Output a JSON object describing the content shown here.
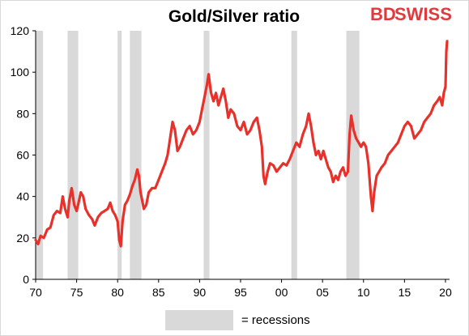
{
  "logo": {
    "brand_a": "BD",
    "brand_b": "SWISS",
    "color": "#e03a3e"
  },
  "chart_data": {
    "type": "line",
    "title": "Gold/Silver ratio",
    "xlabel": "",
    "ylabel": "",
    "xlim": [
      1970,
      2020.3
    ],
    "ylim": [
      0,
      120
    ],
    "x_tick_values": [
      1970,
      1975,
      1980,
      1985,
      1990,
      1995,
      2000,
      2005,
      2010,
      2015,
      2020
    ],
    "x_tick_labels": [
      "70",
      "75",
      "80",
      "85",
      "90",
      "95",
      "00",
      "05",
      "10",
      "15",
      "20"
    ],
    "y_ticks": [
      0,
      20,
      40,
      60,
      80,
      100,
      120
    ],
    "grid": false,
    "line_color": "#e8312a",
    "recession_color": "#d9d9d9",
    "legend": {
      "label": "= recessions",
      "position": "bottom"
    },
    "recessions": [
      [
        1970.0,
        1970.9
      ],
      [
        1973.9,
        1975.2
      ],
      [
        1980.0,
        1980.5
      ],
      [
        1981.5,
        1982.9
      ],
      [
        1990.5,
        1991.2
      ],
      [
        2001.2,
        2001.9
      ],
      [
        2007.9,
        2009.5
      ]
    ],
    "series": [
      {
        "values": [
          [
            1970.0,
            19
          ],
          [
            1970.3,
            17
          ],
          [
            1970.6,
            21
          ],
          [
            1971.0,
            20
          ],
          [
            1971.4,
            24
          ],
          [
            1971.8,
            25
          ],
          [
            1972.2,
            31
          ],
          [
            1972.6,
            33
          ],
          [
            1973.0,
            32
          ],
          [
            1973.3,
            40
          ],
          [
            1973.6,
            34
          ],
          [
            1973.9,
            30
          ],
          [
            1974.1,
            38
          ],
          [
            1974.4,
            44
          ],
          [
            1974.7,
            36
          ],
          [
            1975.0,
            33
          ],
          [
            1975.3,
            38
          ],
          [
            1975.5,
            42
          ],
          [
            1975.8,
            40
          ],
          [
            1976.1,
            34
          ],
          [
            1976.5,
            31
          ],
          [
            1976.9,
            29
          ],
          [
            1977.2,
            26
          ],
          [
            1977.6,
            30
          ],
          [
            1978.0,
            32
          ],
          [
            1978.4,
            33
          ],
          [
            1978.8,
            34
          ],
          [
            1979.1,
            37
          ],
          [
            1979.4,
            33
          ],
          [
            1979.7,
            31
          ],
          [
            1980.0,
            28
          ],
          [
            1980.2,
            19
          ],
          [
            1980.4,
            16
          ],
          [
            1980.6,
            28
          ],
          [
            1980.9,
            36
          ],
          [
            1981.2,
            38
          ],
          [
            1981.5,
            41
          ],
          [
            1981.8,
            45
          ],
          [
            1982.1,
            48
          ],
          [
            1982.4,
            53
          ],
          [
            1982.6,
            50
          ],
          [
            1982.8,
            42
          ],
          [
            1983.0,
            38
          ],
          [
            1983.2,
            34
          ],
          [
            1983.5,
            36
          ],
          [
            1983.8,
            42
          ],
          [
            1984.2,
            44
          ],
          [
            1984.6,
            44
          ],
          [
            1985.0,
            48
          ],
          [
            1985.4,
            52
          ],
          [
            1985.8,
            56
          ],
          [
            1986.1,
            60
          ],
          [
            1986.4,
            68
          ],
          [
            1986.7,
            76
          ],
          [
            1987.0,
            72
          ],
          [
            1987.3,
            62
          ],
          [
            1987.6,
            64
          ],
          [
            1988.0,
            68
          ],
          [
            1988.4,
            72
          ],
          [
            1988.8,
            74
          ],
          [
            1989.2,
            70
          ],
          [
            1989.6,
            72
          ],
          [
            1990.0,
            76
          ],
          [
            1990.3,
            82
          ],
          [
            1990.6,
            88
          ],
          [
            1990.9,
            94
          ],
          [
            1991.1,
            99
          ],
          [
            1991.4,
            90
          ],
          [
            1991.7,
            86
          ],
          [
            1992.0,
            90
          ],
          [
            1992.3,
            84
          ],
          [
            1992.6,
            88
          ],
          [
            1992.9,
            92
          ],
          [
            1993.2,
            86
          ],
          [
            1993.5,
            78
          ],
          [
            1993.8,
            82
          ],
          [
            1994.2,
            80
          ],
          [
            1994.6,
            74
          ],
          [
            1995.0,
            72
          ],
          [
            1995.4,
            76
          ],
          [
            1995.8,
            70
          ],
          [
            1996.2,
            72
          ],
          [
            1996.6,
            76
          ],
          [
            1997.0,
            78
          ],
          [
            1997.3,
            72
          ],
          [
            1997.6,
            64
          ],
          [
            1997.8,
            50
          ],
          [
            1998.0,
            46
          ],
          [
            1998.3,
            52
          ],
          [
            1998.6,
            56
          ],
          [
            1999.0,
            55
          ],
          [
            1999.4,
            52
          ],
          [
            1999.8,
            54
          ],
          [
            2000.2,
            56
          ],
          [
            2000.6,
            55
          ],
          [
            2001.0,
            58
          ],
          [
            2001.4,
            62
          ],
          [
            2001.8,
            66
          ],
          [
            2002.2,
            64
          ],
          [
            2002.6,
            70
          ],
          [
            2003.0,
            74
          ],
          [
            2003.3,
            80
          ],
          [
            2003.6,
            74
          ],
          [
            2003.9,
            66
          ],
          [
            2004.2,
            60
          ],
          [
            2004.5,
            62
          ],
          [
            2004.8,
            58
          ],
          [
            2005.1,
            62
          ],
          [
            2005.4,
            58
          ],
          [
            2005.7,
            54
          ],
          [
            2006.0,
            52
          ],
          [
            2006.3,
            47
          ],
          [
            2006.6,
            50
          ],
          [
            2006.9,
            48
          ],
          [
            2007.2,
            52
          ],
          [
            2007.5,
            54
          ],
          [
            2007.8,
            50
          ],
          [
            2008.1,
            52
          ],
          [
            2008.3,
            70
          ],
          [
            2008.5,
            79
          ],
          [
            2008.8,
            72
          ],
          [
            2009.1,
            68
          ],
          [
            2009.4,
            66
          ],
          [
            2009.7,
            64
          ],
          [
            2010.0,
            66
          ],
          [
            2010.3,
            64
          ],
          [
            2010.6,
            56
          ],
          [
            2010.9,
            40
          ],
          [
            2011.1,
            33
          ],
          [
            2011.3,
            42
          ],
          [
            2011.6,
            50
          ],
          [
            2011.9,
            52
          ],
          [
            2012.2,
            54
          ],
          [
            2012.6,
            56
          ],
          [
            2013.0,
            60
          ],
          [
            2013.4,
            62
          ],
          [
            2013.8,
            64
          ],
          [
            2014.2,
            66
          ],
          [
            2014.6,
            70
          ],
          [
            2015.0,
            74
          ],
          [
            2015.4,
            76
          ],
          [
            2015.8,
            74
          ],
          [
            2016.2,
            68
          ],
          [
            2016.6,
            70
          ],
          [
            2017.0,
            72
          ],
          [
            2017.4,
            76
          ],
          [
            2017.8,
            78
          ],
          [
            2018.2,
            80
          ],
          [
            2018.6,
            84
          ],
          [
            2019.0,
            86
          ],
          [
            2019.3,
            88
          ],
          [
            2019.6,
            84
          ],
          [
            2019.8,
            90
          ],
          [
            2020.0,
            93
          ],
          [
            2020.1,
            110
          ],
          [
            2020.2,
            115
          ]
        ]
      }
    ]
  }
}
